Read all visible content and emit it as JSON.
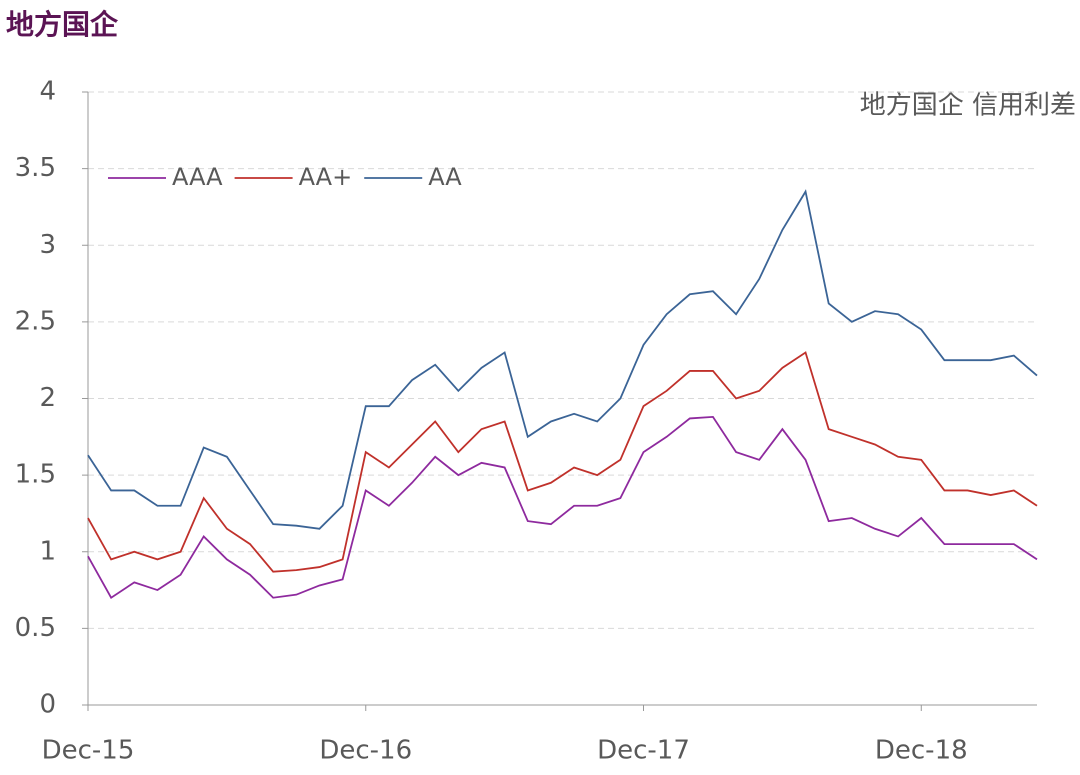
{
  "chart_data": {
    "type": "line",
    "title": "地方国企",
    "annotation": "地方国企 信用利差",
    "categories": [
      "Dec-15",
      null,
      null,
      null,
      null,
      null,
      null,
      null,
      null,
      null,
      null,
      null,
      "Dec-16",
      null,
      null,
      null,
      null,
      null,
      null,
      null,
      null,
      null,
      null,
      null,
      "Dec-17",
      null,
      null,
      null,
      null,
      null,
      null,
      null,
      null,
      null,
      null,
      null,
      "Dec-18",
      null,
      null,
      null,
      null,
      null
    ],
    "series": [
      {
        "name": "AAA",
        "color": "#8e2a9e",
        "values": [
          0.97,
          0.7,
          0.8,
          0.75,
          0.85,
          1.1,
          0.95,
          0.85,
          0.7,
          0.72,
          0.78,
          0.82,
          1.4,
          1.3,
          1.45,
          1.62,
          1.5,
          1.58,
          1.55,
          1.2,
          1.18,
          1.3,
          1.3,
          1.35,
          1.65,
          1.75,
          1.87,
          1.88,
          1.65,
          1.6,
          1.8,
          1.6,
          1.2,
          1.22,
          1.15,
          1.1,
          1.22,
          1.05,
          1.05,
          1.05,
          1.05,
          0.95
        ]
      },
      {
        "name": "AA+",
        "color": "#c0312b",
        "values": [
          1.22,
          0.95,
          1.0,
          0.95,
          1.0,
          1.35,
          1.15,
          1.05,
          0.87,
          0.88,
          0.9,
          0.95,
          1.65,
          1.55,
          1.7,
          1.85,
          1.65,
          1.8,
          1.85,
          1.4,
          1.45,
          1.55,
          1.5,
          1.6,
          1.95,
          2.05,
          2.18,
          2.18,
          2.0,
          2.05,
          2.2,
          2.3,
          1.8,
          1.75,
          1.7,
          1.62,
          1.6,
          1.4,
          1.4,
          1.37,
          1.4,
          1.3
        ]
      },
      {
        "name": "AA",
        "color": "#3b6496",
        "values": [
          1.63,
          1.4,
          1.4,
          1.3,
          1.3,
          1.68,
          1.62,
          1.4,
          1.18,
          1.17,
          1.15,
          1.3,
          1.95,
          1.95,
          2.12,
          2.22,
          2.05,
          2.2,
          2.3,
          1.75,
          1.85,
          1.9,
          1.85,
          2.0,
          2.35,
          2.55,
          2.68,
          2.7,
          2.55,
          2.78,
          3.1,
          3.35,
          2.62,
          2.5,
          2.57,
          2.55,
          2.45,
          2.25,
          2.25,
          2.25,
          2.28,
          2.15
        ]
      }
    ],
    "ylim": [
      0,
      4
    ],
    "yticks": [
      0,
      0.5,
      1,
      1.5,
      2,
      2.5,
      3,
      3.5,
      4
    ],
    "grid": true,
    "legend": "upper left"
  }
}
